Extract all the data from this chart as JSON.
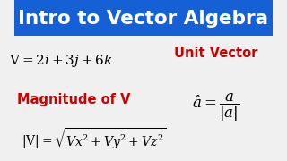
{
  "title": "Intro to Vector Algebra",
  "title_bg": "#1560d4",
  "title_color": "#ffffff",
  "body_bg": "#f0f0f0",
  "eq1": "V = 2\\textit{i} + 3\\textit{j} + 6\\textit{k}",
  "label_magnitude": "Magnitude of V",
  "label_magnitude_color": "#cc0000",
  "eq_magnitude": "|V| = \\sqrt{Vx^2 + Vy^2 + Vz^2}",
  "label_unit": "Unit Vector",
  "label_unit_color": "#cc0000",
  "eq_unit": "\\hat{a} = \\dfrac{a}{|a|}",
  "figsize": [
    3.2,
    1.8
  ],
  "dpi": 100
}
